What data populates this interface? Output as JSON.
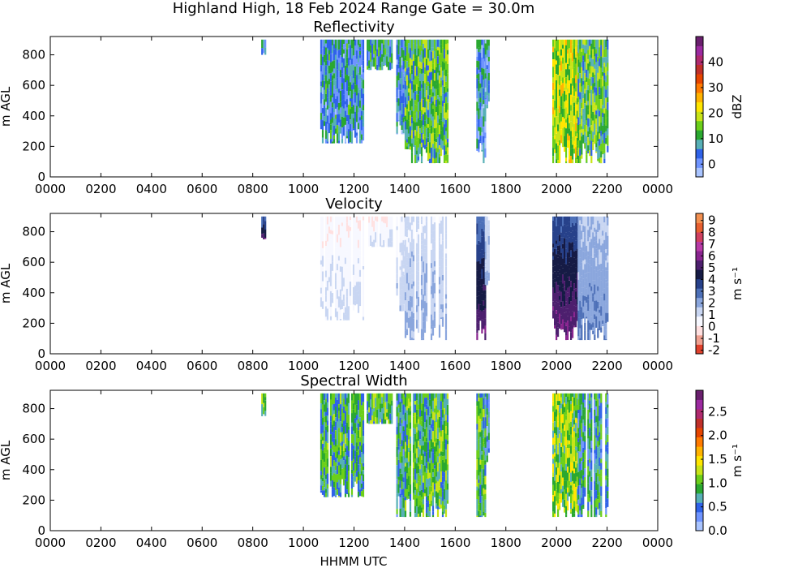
{
  "figure": {
    "suptitle": "Highland High, 18 Feb 2024 Range Gate = 30.0m",
    "xlabel": "HHMM UTC"
  },
  "chart_data": [
    {
      "type": "heatmap",
      "title": "Reflectivity",
      "xlabel": "",
      "ylabel": "m AGL",
      "x_ticks": [
        "0000",
        "0200",
        "0400",
        "0600",
        "0800",
        "1000",
        "1200",
        "1400",
        "1600",
        "1800",
        "2000",
        "2200",
        "0000"
      ],
      "y_ticks": [
        0,
        200,
        400,
        600,
        800
      ],
      "xlim_hours": [
        0,
        24
      ],
      "ylim": [
        0,
        920
      ],
      "colorbar": {
        "label": "dBZ",
        "ticks": [
          "0",
          "10",
          "20",
          "30",
          "40"
        ],
        "tick_values": [
          0,
          10,
          20,
          30,
          40
        ],
        "range": [
          -5,
          50
        ],
        "colors": [
          "#a9c4ff",
          "#6f94ff",
          "#2f62e8",
          "#57b0b6",
          "#2aa830",
          "#6ccf1a",
          "#c8e418",
          "#ffe600",
          "#ffb300",
          "#ff7a00",
          "#e64500",
          "#c0302a",
          "#b02a6e",
          "#9c2aa0",
          "#6a1f6e"
        ]
      },
      "echo_segments": [
        {
          "start": "0820",
          "end": "0830",
          "base_m": 800,
          "top_m": 900,
          "mean_dBZ": 3
        },
        {
          "start": "1040",
          "end": "1220",
          "base_m": 220,
          "top_m": 900,
          "mean_dBZ": 6
        },
        {
          "start": "1230",
          "end": "1330",
          "base_m": 700,
          "top_m": 900,
          "mean_dBZ": 8
        },
        {
          "start": "1340",
          "end": "1400",
          "base_m": 280,
          "top_m": 900,
          "mean_dBZ": 5
        },
        {
          "start": "1400",
          "end": "1540",
          "base_m": 90,
          "top_m": 900,
          "mean_dBZ": 12
        },
        {
          "start": "1650",
          "end": "1710",
          "base_m": 90,
          "top_m": 900,
          "mean_dBZ": 5
        },
        {
          "start": "1710",
          "end": "1720",
          "base_m": 450,
          "top_m": 900,
          "mean_dBZ": 3
        },
        {
          "start": "1950",
          "end": "2050",
          "base_m": 90,
          "top_m": 900,
          "mean_dBZ": 18
        },
        {
          "start": "2050",
          "end": "2200",
          "base_m": 90,
          "top_m": 900,
          "mean_dBZ": 12
        }
      ]
    },
    {
      "type": "heatmap",
      "title": "Velocity",
      "xlabel": "",
      "ylabel": "m AGL",
      "x_ticks": [
        "0000",
        "0200",
        "0400",
        "0600",
        "0800",
        "1000",
        "1200",
        "1400",
        "1600",
        "1800",
        "2000",
        "2200",
        "0000"
      ],
      "y_ticks": [
        0,
        200,
        400,
        600,
        800
      ],
      "xlim_hours": [
        0,
        24
      ],
      "ylim": [
        0,
        920
      ],
      "colorbar": {
        "label": "m s⁻¹",
        "ticks": [
          "-2",
          "-1",
          "0",
          "1",
          "2",
          "3",
          "4",
          "5",
          "6",
          "7",
          "8",
          "9"
        ],
        "tick_values": [
          -2,
          -1,
          0,
          1,
          2,
          3,
          4,
          5,
          6,
          7,
          8,
          9
        ],
        "range": [
          -2.3,
          9.6
        ],
        "colors": [
          "#e0412c",
          "#f0a090",
          "#ffe0e0",
          "#f7f8ff",
          "#c9d6f2",
          "#8aa6dd",
          "#4d70b8",
          "#27418a",
          "#161b45",
          "#4d1f6e",
          "#8a2590",
          "#b83aa6",
          "#d04060",
          "#e86030",
          "#f39050"
        ]
      },
      "echo_segments": [
        {
          "start": "0820",
          "end": "0830",
          "base_m": 750,
          "top_m": 900,
          "mean_ms": 3.5
        },
        {
          "start": "1040",
          "end": "1220",
          "base_m": 220,
          "top_m": 900,
          "mean_ms": 0.6
        },
        {
          "start": "1230",
          "end": "1330",
          "base_m": 700,
          "top_m": 900,
          "mean_ms": 0.6
        },
        {
          "start": "1340",
          "end": "1400",
          "base_m": 280,
          "top_m": 900,
          "mean_ms": 1.0
        },
        {
          "start": "1400",
          "end": "1540",
          "base_m": 90,
          "top_m": 900,
          "mean_ms": 1.4
        },
        {
          "start": "1650",
          "end": "1710",
          "base_m": 90,
          "top_m": 900,
          "mean_ms": 3.5
        },
        {
          "start": "1710",
          "end": "1720",
          "base_m": 450,
          "top_m": 900,
          "mean_ms": 1.5
        },
        {
          "start": "1950",
          "end": "2050",
          "base_m": 90,
          "top_m": 900,
          "mean_ms": 3.8
        },
        {
          "start": "2050",
          "end": "2200",
          "base_m": 90,
          "top_m": 900,
          "mean_ms": 2.0
        }
      ]
    },
    {
      "type": "heatmap",
      "title": "Spectral Width",
      "xlabel": "HHMM UTC",
      "ylabel": "m AGL",
      "x_ticks": [
        "0000",
        "0200",
        "0400",
        "0600",
        "0800",
        "1000",
        "1200",
        "1400",
        "1600",
        "1800",
        "2000",
        "2200",
        "0000"
      ],
      "y_ticks": [
        0,
        200,
        400,
        600,
        800
      ],
      "xlim_hours": [
        0,
        24
      ],
      "ylim": [
        0,
        920
      ],
      "colorbar": {
        "label": "m s⁻¹",
        "ticks": [
          "0.0",
          "0.5",
          "1.0",
          "1.5",
          "2.0",
          "2.5"
        ],
        "tick_values": [
          0.0,
          0.5,
          1.0,
          1.5,
          2.0,
          2.5
        ],
        "range": [
          0,
          2.95
        ],
        "colors": [
          "#a9c4ff",
          "#6f94ff",
          "#2f62e8",
          "#57b0b6",
          "#2aa830",
          "#6ccf1a",
          "#c8e418",
          "#ffe600",
          "#ffb300",
          "#ff7a00",
          "#e64500",
          "#c0302a",
          "#b02a6e",
          "#9c2aa0",
          "#6a1f6e"
        ]
      },
      "echo_segments": [
        {
          "start": "0820",
          "end": "0830",
          "base_m": 750,
          "top_m": 900,
          "mean_ms": 1.0
        },
        {
          "start": "1040",
          "end": "1220",
          "base_m": 220,
          "top_m": 900,
          "mean_ms": 0.8
        },
        {
          "start": "1230",
          "end": "1330",
          "base_m": 700,
          "top_m": 900,
          "mean_ms": 0.9
        },
        {
          "start": "1340",
          "end": "1400",
          "base_m": 90,
          "top_m": 900,
          "mean_ms": 0.7
        },
        {
          "start": "1400",
          "end": "1540",
          "base_m": 90,
          "top_m": 900,
          "mean_ms": 0.9
        },
        {
          "start": "1650",
          "end": "1710",
          "base_m": 90,
          "top_m": 900,
          "mean_ms": 0.9
        },
        {
          "start": "1710",
          "end": "1720",
          "base_m": 450,
          "top_m": 900,
          "mean_ms": 0.6
        },
        {
          "start": "1950",
          "end": "2050",
          "base_m": 90,
          "top_m": 900,
          "mean_ms": 1.1
        },
        {
          "start": "2050",
          "end": "2200",
          "base_m": 90,
          "top_m": 900,
          "mean_ms": 0.7
        }
      ]
    }
  ]
}
